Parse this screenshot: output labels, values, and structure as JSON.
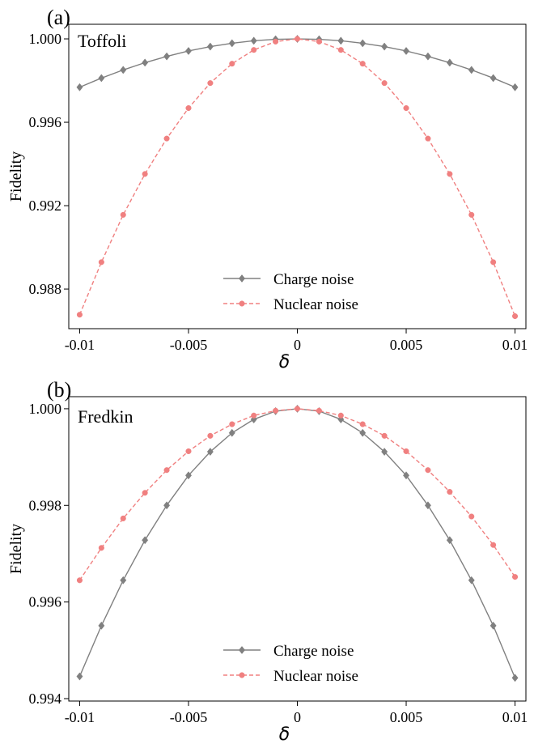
{
  "chart_data": [
    {
      "panel_label": "(a)",
      "type": "line",
      "title": "Toffoli",
      "xlabel": "δ",
      "ylabel": "Fidelity",
      "xlim": [
        -0.0105,
        0.0105
      ],
      "ylim": [
        0.9861,
        1.0007
      ],
      "xticks": [
        -0.01,
        -0.005,
        0,
        0.005,
        0.01
      ],
      "xtick_labels": [
        "-0.01",
        "-0.005",
        "0",
        "0.005",
        "0.01"
      ],
      "yticks": [
        0.988,
        0.992,
        0.996,
        1.0
      ],
      "ytick_labels": [
        "0.988",
        "0.992",
        "0.996",
        "1.000"
      ],
      "legend_position": "lower-center",
      "x": [
        -0.01,
        -0.009,
        -0.008,
        -0.007,
        -0.006,
        -0.005,
        -0.004,
        -0.003,
        -0.002,
        -0.001,
        0,
        0.001,
        0.002,
        0.003,
        0.004,
        0.005,
        0.006,
        0.007,
        0.008,
        0.009,
        0.01
      ],
      "series": [
        {
          "name": "Charge noise",
          "color": "#808080",
          "marker": "diamond",
          "linestyle": "solid",
          "values": [
            0.99768,
            0.99812,
            0.99851,
            0.99886,
            0.99916,
            0.99942,
            0.99963,
            0.99979,
            0.99991,
            0.99998,
            1.0,
            0.99998,
            0.99991,
            0.99979,
            0.99963,
            0.99942,
            0.99916,
            0.99886,
            0.99851,
            0.99812,
            0.99768
          ]
        },
        {
          "name": "Nuclear noise",
          "color": "#f08080",
          "marker": "circle",
          "linestyle": "dashed",
          "values": [
            0.98677,
            0.98929,
            0.99156,
            0.99352,
            0.99522,
            0.99668,
            0.99788,
            0.99881,
            0.99947,
            0.99987,
            1.0,
            0.99987,
            0.99947,
            0.99881,
            0.99788,
            0.99668,
            0.99522,
            0.99352,
            0.99156,
            0.98929,
            0.9867
          ]
        }
      ]
    },
    {
      "panel_label": "(b)",
      "type": "line",
      "title": "Fredkin",
      "xlabel": "δ",
      "ylabel": "Fidelity",
      "xlim": [
        -0.0105,
        0.0105
      ],
      "ylim": [
        0.99395,
        1.00025
      ],
      "xticks": [
        -0.01,
        -0.005,
        0,
        0.005,
        0.01
      ],
      "xtick_labels": [
        "-0.01",
        "-0.005",
        "0",
        "0.005",
        "0.01"
      ],
      "yticks": [
        0.994,
        0.996,
        0.998,
        1.0
      ],
      "ytick_labels": [
        "0.994",
        "0.996",
        "0.998",
        "1.000"
      ],
      "legend_position": "lower-center",
      "x": [
        -0.01,
        -0.009,
        -0.008,
        -0.007,
        -0.006,
        -0.005,
        -0.004,
        -0.003,
        -0.002,
        -0.001,
        0,
        0.001,
        0.002,
        0.003,
        0.004,
        0.005,
        0.006,
        0.007,
        0.008,
        0.009,
        0.01
      ],
      "series": [
        {
          "name": "Charge noise",
          "color": "#808080",
          "marker": "diamond",
          "linestyle": "solid",
          "values": [
            0.99446,
            0.99551,
            0.99645,
            0.99728,
            0.998,
            0.99862,
            0.99911,
            0.9995,
            0.99978,
            0.99995,
            1.0,
            0.99995,
            0.99978,
            0.9995,
            0.99911,
            0.99862,
            0.998,
            0.99728,
            0.99645,
            0.99551,
            0.99443
          ]
        },
        {
          "name": "Nuclear noise",
          "color": "#f08080",
          "marker": "circle",
          "linestyle": "dashed",
          "values": [
            0.99645,
            0.99712,
            0.99773,
            0.99826,
            0.99873,
            0.99912,
            0.99944,
            0.99968,
            0.99986,
            0.99996,
            1.0,
            0.99996,
            0.99986,
            0.99968,
            0.99944,
            0.99912,
            0.99873,
            0.99828,
            0.99777,
            0.99718,
            0.99652
          ]
        }
      ]
    }
  ]
}
